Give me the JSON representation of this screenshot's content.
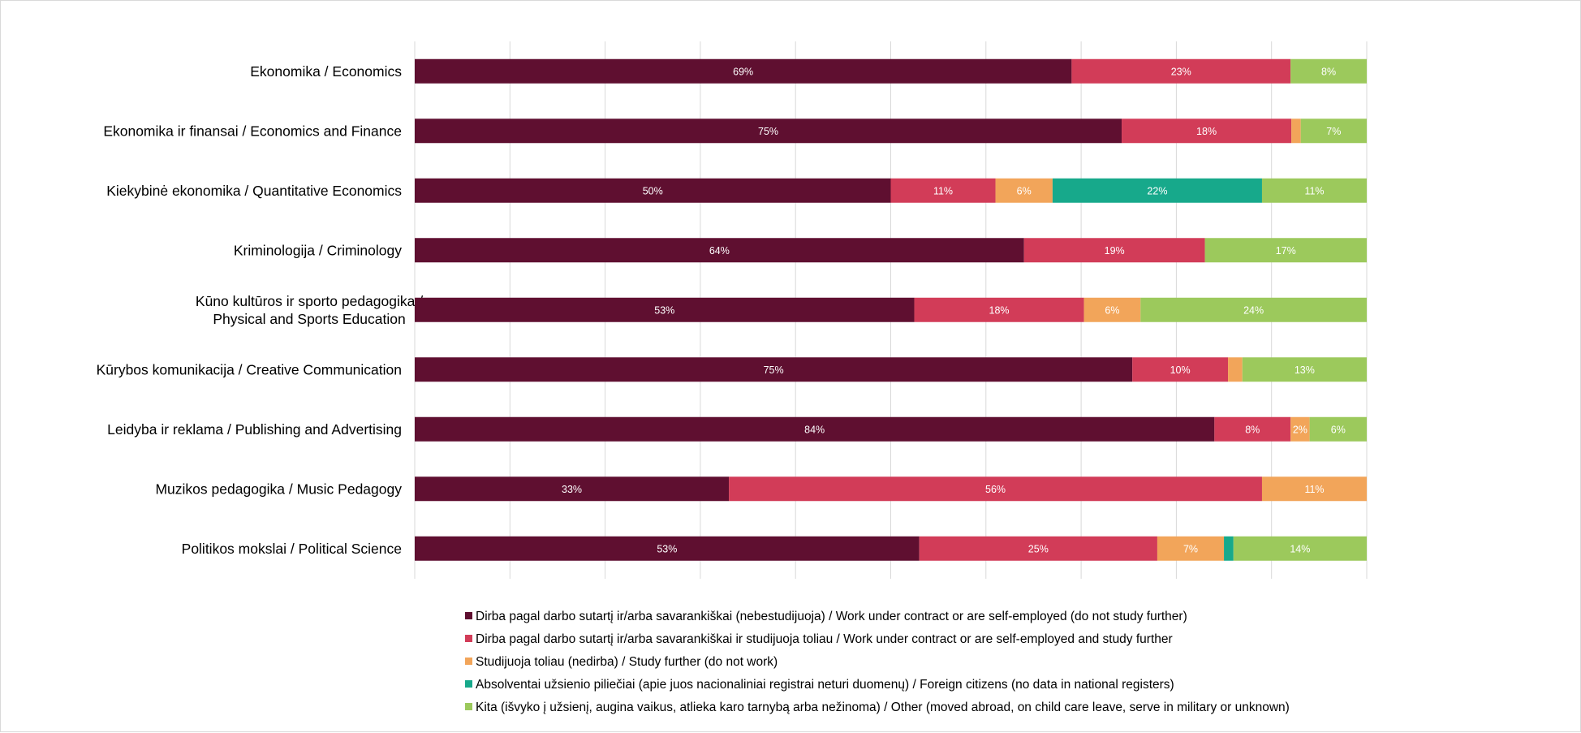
{
  "chart_data": {
    "type": "bar",
    "orientation": "horizontal-stacked-100",
    "categories": [
      "Ekonomika / Economics",
      "Ekonomika ir finansai / Economics and Finance",
      "Kiekybinė ekonomika / Quantitative Economics",
      "Kriminologija / Criminology",
      "Kūno kultūros ir sporto pedagogika / Physical and Sports Education",
      "Kūrybos komunikacija / Creative Communication",
      "Leidyba ir reklama / Publishing and Advertising",
      "Muzikos pedagogika / Music Pedagogy",
      "Politikos mokslai / Political Science"
    ],
    "category_lines": [
      [
        "Ekonomika / Economics"
      ],
      [
        "Ekonomika ir finansai / Economics and Finance"
      ],
      [
        "Kiekybinė ekonomika / Quantitative Economics"
      ],
      [
        "Kriminologija / Criminology"
      ],
      [
        "Kūno kultūros ir sporto pedagogika /",
        "Physical and Sports Education"
      ],
      [
        "Kūrybos komunikacija / Creative Communication"
      ],
      [
        "Leidyba ir reklama / Publishing and Advertising"
      ],
      [
        "Muzikos pedagogika / Music Pedagogy"
      ],
      [
        "Politikos mokslai / Political Science"
      ]
    ],
    "series": [
      {
        "name": "Dirba pagal darbo sutartį ir/arba savarankiškai (nebestudijuoja) / Work under contract or are self-employed (do not study further)",
        "color": "#5f0f30",
        "values": [
          69,
          75,
          50,
          64,
          53,
          75,
          84,
          33,
          53
        ],
        "labels": [
          "69%",
          "75%",
          "50%",
          "64%",
          "53%",
          "75%",
          "84%",
          "33%",
          "53%"
        ]
      },
      {
        "name": "Dirba pagal darbo sutartį ir/arba savarankiškai  ir studijuoja toliau / Work under contract or are self-employed and study further",
        "color": "#d23c58",
        "values": [
          23,
          18,
          11,
          19,
          18,
          10,
          8,
          56,
          25
        ],
        "labels": [
          "23%",
          "18%",
          "11%",
          "19%",
          "18%",
          "10%",
          "8%",
          "56%",
          "25%"
        ]
      },
      {
        "name": "Studijuoja toliau (nedirba) / Study further (do not work)",
        "color": "#f2a55a",
        "values": [
          0,
          1,
          6,
          0,
          6,
          1.5,
          2,
          11,
          7
        ],
        "labels": [
          "",
          "",
          "6%",
          "",
          "6%",
          "",
          "2%",
          "11%",
          "7%"
        ]
      },
      {
        "name": "Absolventai užsienio piliečiai (apie juos nacionaliniai registrai neturi duomenų) / Foreign citizens (no data in national registers)",
        "color": "#17a98b",
        "values": [
          0,
          0,
          22,
          0,
          0,
          0,
          0,
          0,
          1
        ],
        "labels": [
          "",
          "",
          "22%",
          "",
          "",
          "",
          "",
          "",
          ""
        ]
      },
      {
        "name": "Kita (išvyko į užsienį, augina vaikus, atlieka karo tarnybą arba nežinoma) / Other (moved abroad, on child care leave, serve in military or unknown)",
        "color": "#9cc95c",
        "values": [
          8,
          7,
          11,
          17,
          24,
          13,
          6,
          0,
          14
        ],
        "labels": [
          "8%",
          "7%",
          "11%",
          "17%",
          "24%",
          "13%",
          "6%",
          "",
          "14%"
        ]
      }
    ],
    "xlim": [
      0,
      100
    ],
    "grid": true,
    "legend_position": "bottom",
    "title": "",
    "xlabel": "",
    "ylabel": ""
  }
}
